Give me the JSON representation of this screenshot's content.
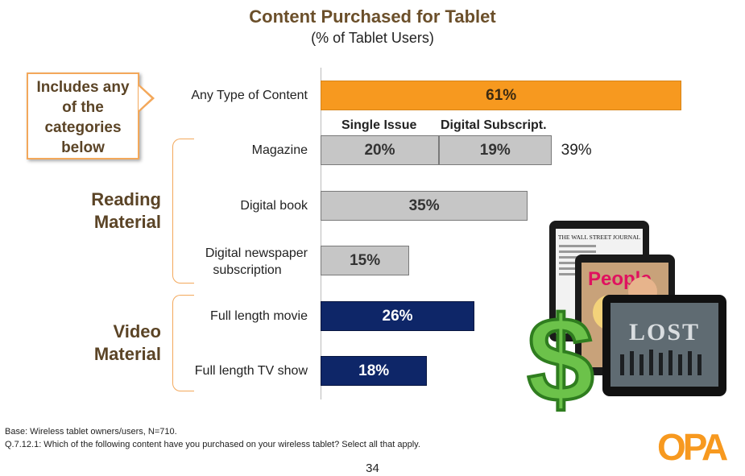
{
  "chart_data": {
    "type": "bar",
    "orientation": "horizontal",
    "title": "Content Purchased for Tablet",
    "subtitle": "(% of Tablet Users)",
    "xlim": [
      0,
      100
    ],
    "categories": [
      {
        "label": "Any Type of Content",
        "group": "any",
        "value": 61,
        "label_text": "61%",
        "color": "#f7991f"
      },
      {
        "label": "Magazine",
        "group": "reading",
        "segments": [
          {
            "name": "Single Issue",
            "value": 20,
            "label_text": "20%"
          },
          {
            "name": "Digital Subscript.",
            "value": 19,
            "label_text": "19%"
          }
        ],
        "total": 39,
        "total_text": "39%",
        "color": "#c6c6c6"
      },
      {
        "label": "Digital book",
        "group": "reading",
        "value": 35,
        "label_text": "35%",
        "color": "#c6c6c6"
      },
      {
        "label": "Digital newspaper subscription",
        "group": "reading",
        "value": 15,
        "label_text": "15%",
        "color": "#c6c6c6"
      },
      {
        "label": "Full length movie",
        "group": "video",
        "value": 26,
        "label_text": "26%",
        "color": "#0e2668"
      },
      {
        "label": "Full length TV show",
        "group": "video",
        "value": 18,
        "label_text": "18%",
        "color": "#0e2668"
      }
    ],
    "segment_headers": [
      "Single Issue",
      "Digital Subscript."
    ],
    "groups": {
      "reading": "Reading Material",
      "video": "Video Material"
    },
    "callout": "Includes any of the categories below"
  },
  "footer": {
    "base": "Base:   Wireless tablet owners/users, N=710.",
    "question": "Q.7.12.1:   Which of the following content have you purchased on your wireless tablet? Select all that apply.",
    "page": "34",
    "logo": "OPA"
  },
  "illustration": {
    "newspaper": "THE WALL STREET JOURNAL",
    "magazine": "People",
    "show": "LOST"
  }
}
